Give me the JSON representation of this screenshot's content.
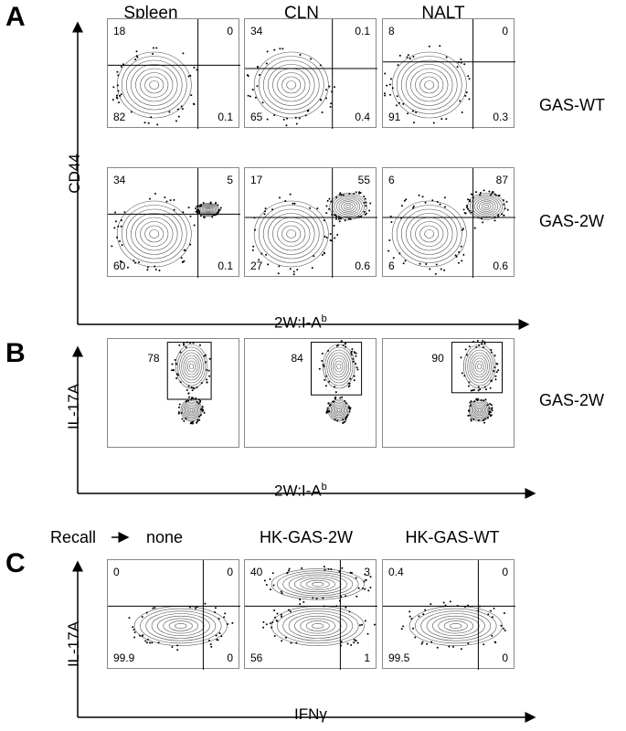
{
  "panels": {
    "A": "A",
    "B": "B",
    "C": "C"
  },
  "columns": [
    "Spleen",
    "CLN",
    "NALT"
  ],
  "recall": {
    "label": "Recall",
    "conditions": [
      "none",
      "HK-GAS-2W",
      "HK-GAS-WT"
    ]
  },
  "row_labels": {
    "a_top": "GAS-WT",
    "a_bottom": "GAS-2W",
    "b": "GAS-2W"
  },
  "axes": {
    "A": {
      "y": "CD44",
      "x_main": "2W:I-A",
      "x_sup": "b"
    },
    "B": {
      "y": "IL-17A",
      "x_main": "2W:I-A",
      "x_sup": "b"
    },
    "C": {
      "y": "IL-17A",
      "x": "IFNγ"
    }
  },
  "chart_data": [
    {
      "type": "scatter",
      "panel": "A",
      "row": "GAS-WT",
      "population": "Spleen",
      "quadrants": {
        "top_left": "18",
        "top_right": "0",
        "bottom_left": "82",
        "bottom_right": "0.1"
      }
    },
    {
      "type": "scatter",
      "panel": "A",
      "row": "GAS-WT",
      "population": "CLN",
      "quadrants": {
        "top_left": "34",
        "top_right": "0.1",
        "bottom_left": "65",
        "bottom_right": "0.4"
      }
    },
    {
      "type": "scatter",
      "panel": "A",
      "row": "GAS-WT",
      "population": "NALT",
      "quadrants": {
        "top_left": "8",
        "top_right": "0",
        "bottom_left": "91",
        "bottom_right": "0.3"
      }
    },
    {
      "type": "scatter",
      "panel": "A",
      "row": "GAS-2W",
      "population": "Spleen",
      "quadrants": {
        "top_left": "34",
        "top_right": "5",
        "bottom_left": "60",
        "bottom_right": "0.1"
      }
    },
    {
      "type": "scatter",
      "panel": "A",
      "row": "GAS-2W",
      "population": "CLN",
      "quadrants": {
        "top_left": "17",
        "top_right": "55",
        "bottom_left": "27",
        "bottom_right": "0.6"
      }
    },
    {
      "type": "scatter",
      "panel": "A",
      "row": "GAS-2W",
      "population": "NALT",
      "quadrants": {
        "top_left": "6",
        "top_right": "87",
        "bottom_left": "6",
        "bottom_right": "0.6"
      }
    },
    {
      "type": "scatter",
      "panel": "B",
      "row": "GAS-2W",
      "population": "Spleen",
      "gate": "78"
    },
    {
      "type": "scatter",
      "panel": "B",
      "row": "GAS-2W",
      "population": "CLN",
      "gate": "84"
    },
    {
      "type": "scatter",
      "panel": "B",
      "row": "GAS-2W",
      "population": "NALT",
      "gate": "90"
    },
    {
      "type": "scatter",
      "panel": "C",
      "recall": "none",
      "quadrants": {
        "top_left": "0",
        "top_right": "0",
        "bottom_left": "99.9",
        "bottom_right": "0"
      }
    },
    {
      "type": "scatter",
      "panel": "C",
      "recall": "HK-GAS-2W",
      "quadrants": {
        "top_left": "40",
        "top_right": "3",
        "bottom_left": "56",
        "bottom_right": "1"
      }
    },
    {
      "type": "scatter",
      "panel": "C",
      "recall": "HK-GAS-WT",
      "quadrants": {
        "top_left": "0.4",
        "top_right": "0",
        "bottom_left": "99.5",
        "bottom_right": "0"
      }
    }
  ]
}
